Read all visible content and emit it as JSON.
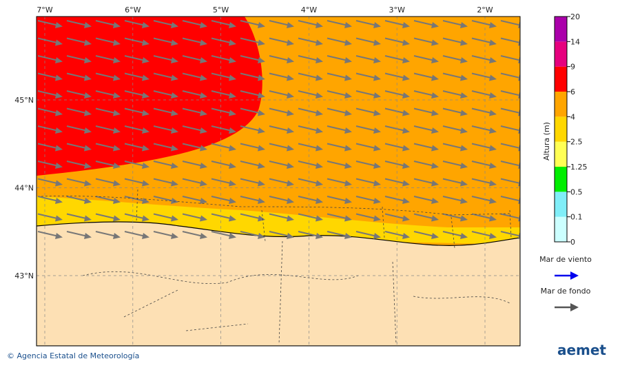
{
  "map": {
    "lon_ticks": [
      {
        "value": -7,
        "label": "7°W"
      },
      {
        "value": -6,
        "label": "6°W"
      },
      {
        "value": -5,
        "label": "5°W"
      },
      {
        "value": -4,
        "label": "4°W"
      },
      {
        "value": -3,
        "label": "3°W"
      },
      {
        "value": -2,
        "label": "2°W"
      }
    ],
    "lat_ticks": [
      {
        "value": 45,
        "label": "45°N"
      },
      {
        "value": 44,
        "label": "44°N"
      },
      {
        "value": 43,
        "label": "43°N"
      }
    ]
  },
  "colorbar": {
    "title": "Altura (m)",
    "levels": [
      0,
      0.1,
      0.5,
      1.25,
      2.5,
      4,
      6,
      9,
      14,
      20
    ],
    "colors": [
      "#ccffff",
      "#80eef8",
      "#00ee00",
      "#ffff55",
      "#ffd700",
      "#ffa500",
      "#ff0000",
      "#e6007e",
      "#aa00aa"
    ]
  },
  "legend": [
    {
      "name": "Mar de viento",
      "color": "#0000ee"
    },
    {
      "name": "Mar de fondo",
      "color": "#555555"
    }
  ],
  "footer": {
    "credit": "© Agencia Estatal de Meteorología",
    "logo": "aemet"
  }
}
